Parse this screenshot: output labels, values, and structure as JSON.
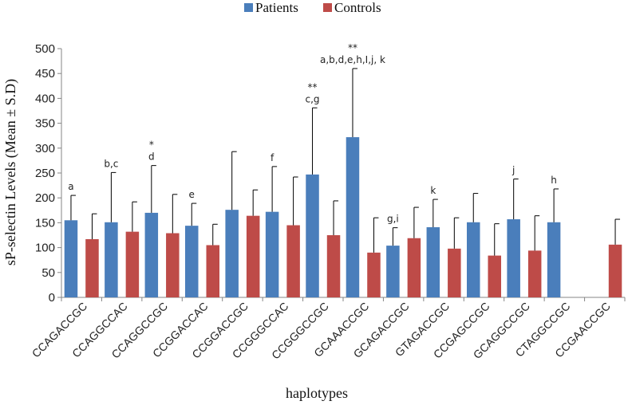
{
  "chart_data": {
    "type": "bar",
    "title": "",
    "xlabel": "haplotypes",
    "ylabel": "sP-selectin Levels (Mean ± S.D)",
    "ylim": [
      0,
      500
    ],
    "yticks": [
      0,
      50,
      100,
      150,
      200,
      250,
      300,
      350,
      400,
      450,
      500
    ],
    "grid": false,
    "legend_position": "top-center",
    "categories": [
      "CCAGACCGC",
      "CCAGGCCAC",
      "CCAGGCCGC",
      "CCGGACCAC",
      "CCGGACCGC",
      "CCGGGCCAC",
      "CCGGGCCGC",
      "GCAAACCGC",
      "GCAGACCGC",
      "GTAGACCGC",
      "CCGAGCCGC",
      "GCAGGCCGC",
      "CTAGGCCGC",
      "CCGAACCGC"
    ],
    "series": [
      {
        "name": "Patients",
        "color": "#4a7ebb",
        "values": [
          155,
          151,
          170,
          144,
          176,
          172,
          247,
          322,
          104,
          141,
          151,
          157,
          151,
          null
        ],
        "sd": [
          50,
          100,
          95,
          45,
          117,
          91,
          134,
          138,
          36,
          56,
          58,
          81,
          67,
          null
        ]
      },
      {
        "name": "Controls",
        "color": "#be4b48",
        "values": [
          117,
          132,
          129,
          105,
          164,
          145,
          125,
          90,
          119,
          98,
          84,
          94,
          null,
          106
        ],
        "sd": [
          51,
          60,
          78,
          42,
          52,
          97,
          69,
          70,
          62,
          62,
          64,
          70,
          null,
          51
        ]
      }
    ],
    "annotations": [
      {
        "category": 0,
        "lines": [
          "a"
        ]
      },
      {
        "category": 1,
        "lines": [
          "b,c"
        ]
      },
      {
        "category": 2,
        "lines": [
          "*",
          "d"
        ]
      },
      {
        "category": 3,
        "lines": [
          "e"
        ]
      },
      {
        "category": 5,
        "lines": [
          "f"
        ]
      },
      {
        "category": 6,
        "lines": [
          "**",
          "c,g"
        ]
      },
      {
        "category": 7,
        "lines": [
          "**",
          "a,b,d,e,h,I,j, k"
        ]
      },
      {
        "category": 8,
        "lines": [
          "g,i"
        ]
      },
      {
        "category": 9,
        "lines": [
          "k"
        ]
      },
      {
        "category": 11,
        "lines": [
          "j"
        ]
      },
      {
        "category": 12,
        "lines": [
          "h"
        ]
      }
    ]
  }
}
